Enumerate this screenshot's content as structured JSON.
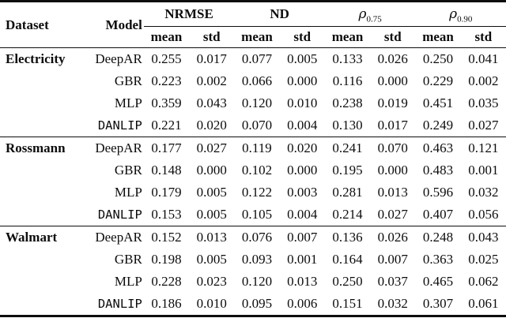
{
  "table": {
    "headers": {
      "dataset": "Dataset",
      "model": "Model",
      "groups": [
        {
          "label": "NRMSE",
          "sub": ""
        },
        {
          "label": "ND",
          "sub": ""
        },
        {
          "label": "ρ",
          "sub": "0.75"
        },
        {
          "label": "ρ",
          "sub": "0.90"
        }
      ],
      "sub": [
        "mean",
        "std",
        "mean",
        "std",
        "mean",
        "std",
        "mean",
        "std"
      ]
    },
    "blocks": [
      {
        "dataset": "Electricity",
        "rows": [
          {
            "model": "DeepAR",
            "values": [
              "0.255",
              "0.017",
              "0.077",
              "0.005",
              "0.133",
              "0.026",
              "0.250",
              "0.041"
            ]
          },
          {
            "model": "GBR",
            "values": [
              "0.223",
              "0.002",
              "0.066",
              "0.000",
              "0.116",
              "0.000",
              "0.229",
              "0.002"
            ]
          },
          {
            "model": "MLP",
            "values": [
              "0.359",
              "0.043",
              "0.120",
              "0.010",
              "0.238",
              "0.019",
              "0.451",
              "0.035"
            ]
          },
          {
            "model": "DANLIP",
            "values": [
              "0.221",
              "0.020",
              "0.070",
              "0.004",
              "0.130",
              "0.017",
              "0.249",
              "0.027"
            ]
          }
        ]
      },
      {
        "dataset": "Rossmann",
        "rows": [
          {
            "model": "DeepAR",
            "values": [
              "0.177",
              "0.027",
              "0.119",
              "0.020",
              "0.241",
              "0.070",
              "0.463",
              "0.121"
            ]
          },
          {
            "model": "GBR",
            "values": [
              "0.148",
              "0.000",
              "0.102",
              "0.000",
              "0.195",
              "0.000",
              "0.483",
              "0.001"
            ]
          },
          {
            "model": "MLP",
            "values": [
              "0.179",
              "0.005",
              "0.122",
              "0.003",
              "0.281",
              "0.013",
              "0.596",
              "0.032"
            ]
          },
          {
            "model": "DANLIP",
            "values": [
              "0.153",
              "0.005",
              "0.105",
              "0.004",
              "0.214",
              "0.027",
              "0.407",
              "0.056"
            ]
          }
        ]
      },
      {
        "dataset": "Walmart",
        "rows": [
          {
            "model": "DeepAR",
            "values": [
              "0.152",
              "0.013",
              "0.076",
              "0.007",
              "0.136",
              "0.026",
              "0.248",
              "0.043"
            ]
          },
          {
            "model": "GBR",
            "values": [
              "0.198",
              "0.005",
              "0.093",
              "0.001",
              "0.164",
              "0.007",
              "0.363",
              "0.025"
            ]
          },
          {
            "model": "MLP",
            "values": [
              "0.228",
              "0.023",
              "0.120",
              "0.013",
              "0.250",
              "0.037",
              "0.465",
              "0.062"
            ]
          },
          {
            "model": "DANLIP",
            "values": [
              "0.186",
              "0.010",
              "0.095",
              "0.006",
              "0.151",
              "0.032",
              "0.307",
              "0.061"
            ]
          }
        ]
      }
    ]
  }
}
